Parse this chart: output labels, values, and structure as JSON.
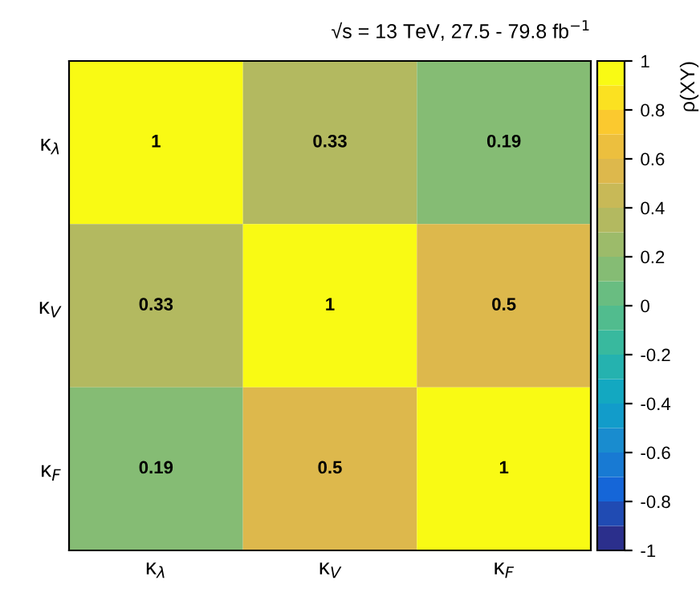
{
  "chart_data": {
    "type": "heatmap",
    "title": "√s = 13 TeV, 27.5 - 79.8 fb$^{−1}$",
    "clabel": "ρ(XY)",
    "categories": [
      "κ$_{λ}$",
      "κ$_{V}$",
      "κ$_{F}$"
    ],
    "y_categories": [
      "κ$_{λ}$",
      "κ$_{V}$",
      "κ$_{F}$"
    ],
    "cells": [
      [
        1,
        0.33,
        0.19
      ],
      [
        0.33,
        1,
        0.5
      ],
      [
        0.19,
        0.5,
        1
      ]
    ],
    "data_labels": true,
    "clim": [
      -1,
      1
    ],
    "cticks": [
      -1,
      -0.8,
      -0.6,
      -0.4,
      -0.2,
      0,
      0.2,
      0.4,
      0.6,
      0.8,
      1
    ]
  }
}
